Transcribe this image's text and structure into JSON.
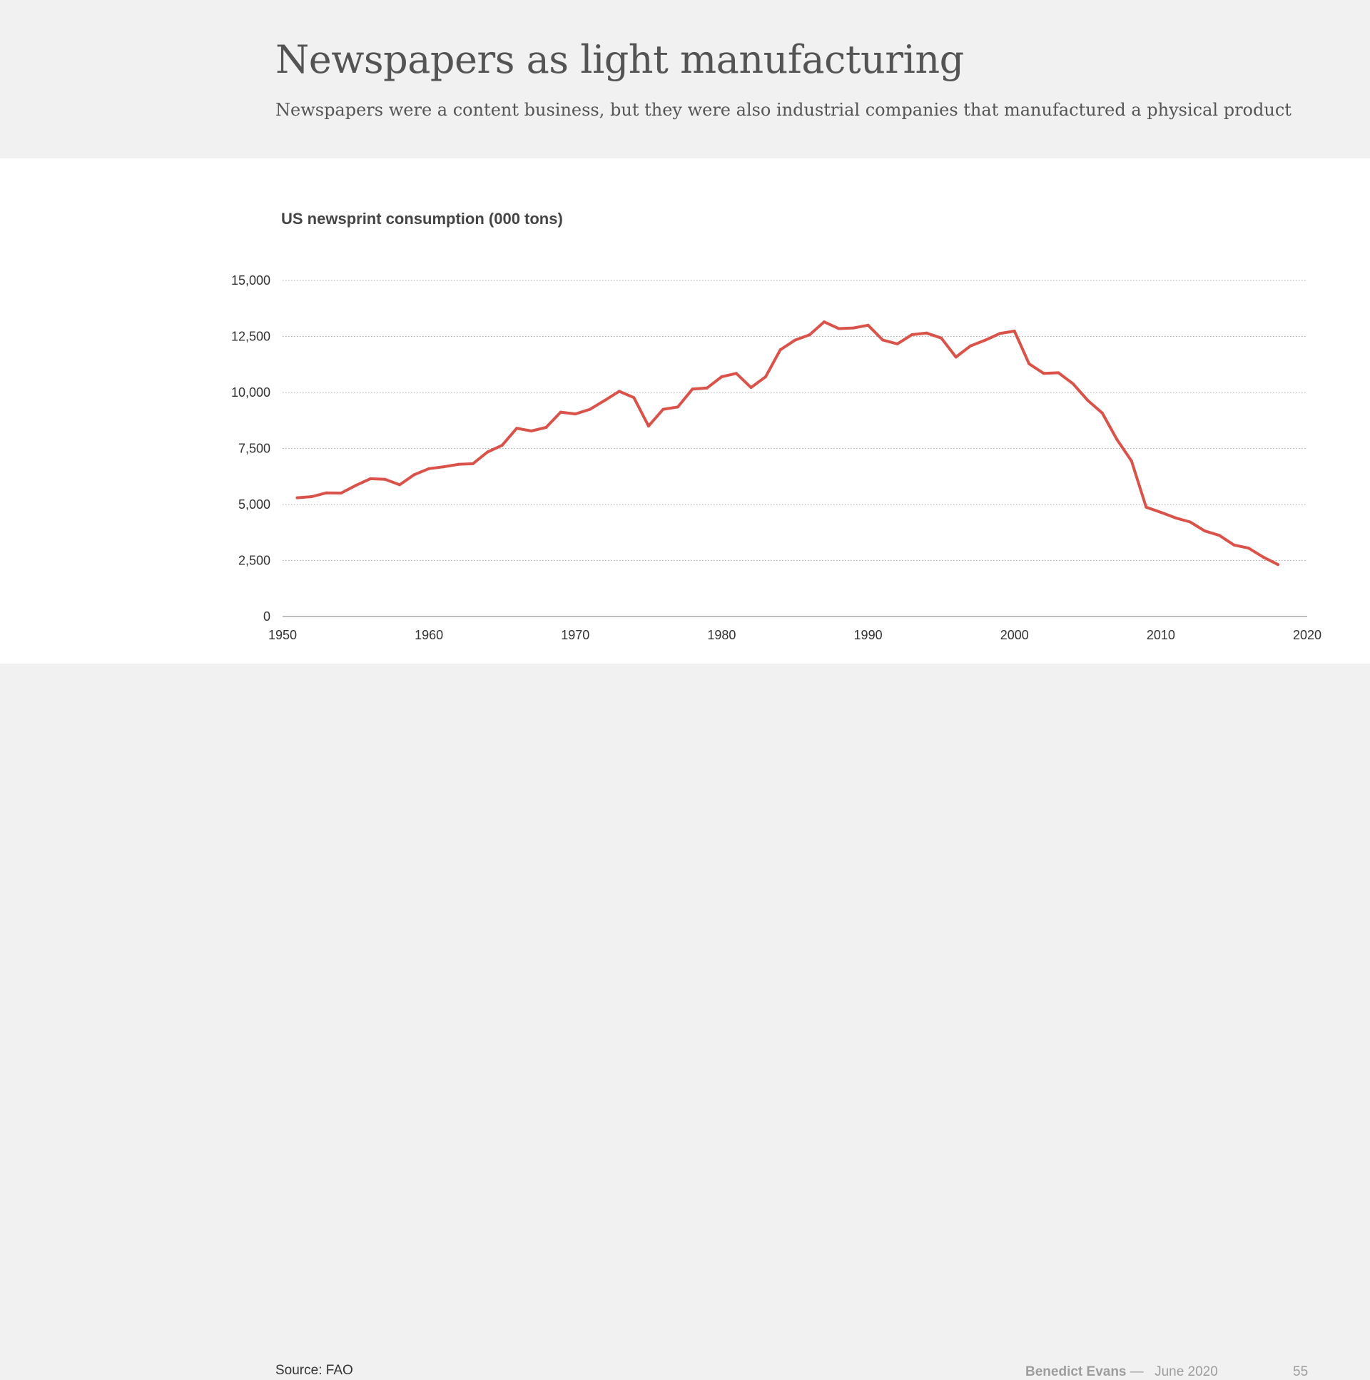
{
  "header": {
    "title": "Newspapers as light manufacturing",
    "subtitle": "Newspapers were a content business, but they were also industrial companies that manufactured a physical product"
  },
  "footer": {
    "source": "Source: FAO",
    "author": "Benedict Evans",
    "separator": "—",
    "date": "June 2020",
    "page": "55"
  },
  "colors": {
    "line": "#d9534a",
    "header_bg": "#f1f1f1",
    "panel_bg": "#ffffff"
  },
  "chart_data": {
    "type": "line",
    "title": "US newsprint consumption (000 tons)",
    "xlabel": "",
    "ylabel": "",
    "xlim": [
      1950,
      2020
    ],
    "ylim": [
      0,
      15000
    ],
    "x_ticks": [
      1950,
      1960,
      1970,
      1980,
      1990,
      2000,
      2010,
      2020
    ],
    "y_ticks": [
      0,
      2500,
      5000,
      7500,
      10000,
      12500,
      15000
    ],
    "y_tick_labels": [
      "0",
      "2,500",
      "5,000",
      "7,500",
      "10,000",
      "12,500",
      "15,000"
    ],
    "grid": true,
    "series": [
      {
        "x": [
          1951,
          1952,
          1953,
          1954,
          1955,
          1956,
          1957,
          1958,
          1959,
          1960,
          1961,
          1962,
          1963,
          1964,
          1965,
          1966,
          1967,
          1968,
          1969,
          1970,
          1971,
          1972,
          1973,
          1974,
          1975,
          1976,
          1977,
          1978,
          1979,
          1980,
          1981,
          1982,
          1983,
          1984,
          1985,
          1986,
          1987,
          1988,
          1989,
          1990,
          1991,
          1992,
          1993,
          1994,
          1995,
          1996,
          1997,
          1998,
          1999,
          2000,
          2001,
          2002,
          2003,
          2004,
          2005,
          2006,
          2007,
          2008,
          2009,
          2010,
          2011,
          2012,
          2013,
          2014,
          2015,
          2016,
          2017,
          2018
        ],
        "values": [
          5300,
          5350,
          5520,
          5510,
          5850,
          6150,
          6120,
          5880,
          6330,
          6600,
          6680,
          6790,
          6820,
          7340,
          7640,
          8400,
          8280,
          8440,
          9120,
          9040,
          9250,
          9640,
          10050,
          9770,
          8500,
          9250,
          9350,
          10150,
          10200,
          10700,
          10850,
          10220,
          10700,
          11900,
          12330,
          12570,
          13150,
          12850,
          12880,
          13000,
          12340,
          12170,
          12580,
          12650,
          12430,
          11580,
          12080,
          12330,
          12630,
          12740,
          11280,
          10850,
          10880,
          10390,
          9650,
          9080,
          7900,
          6940,
          4880,
          4650,
          4400,
          4220,
          3820,
          3620,
          3190,
          3050,
          2650,
          2320
        ]
      }
    ]
  }
}
